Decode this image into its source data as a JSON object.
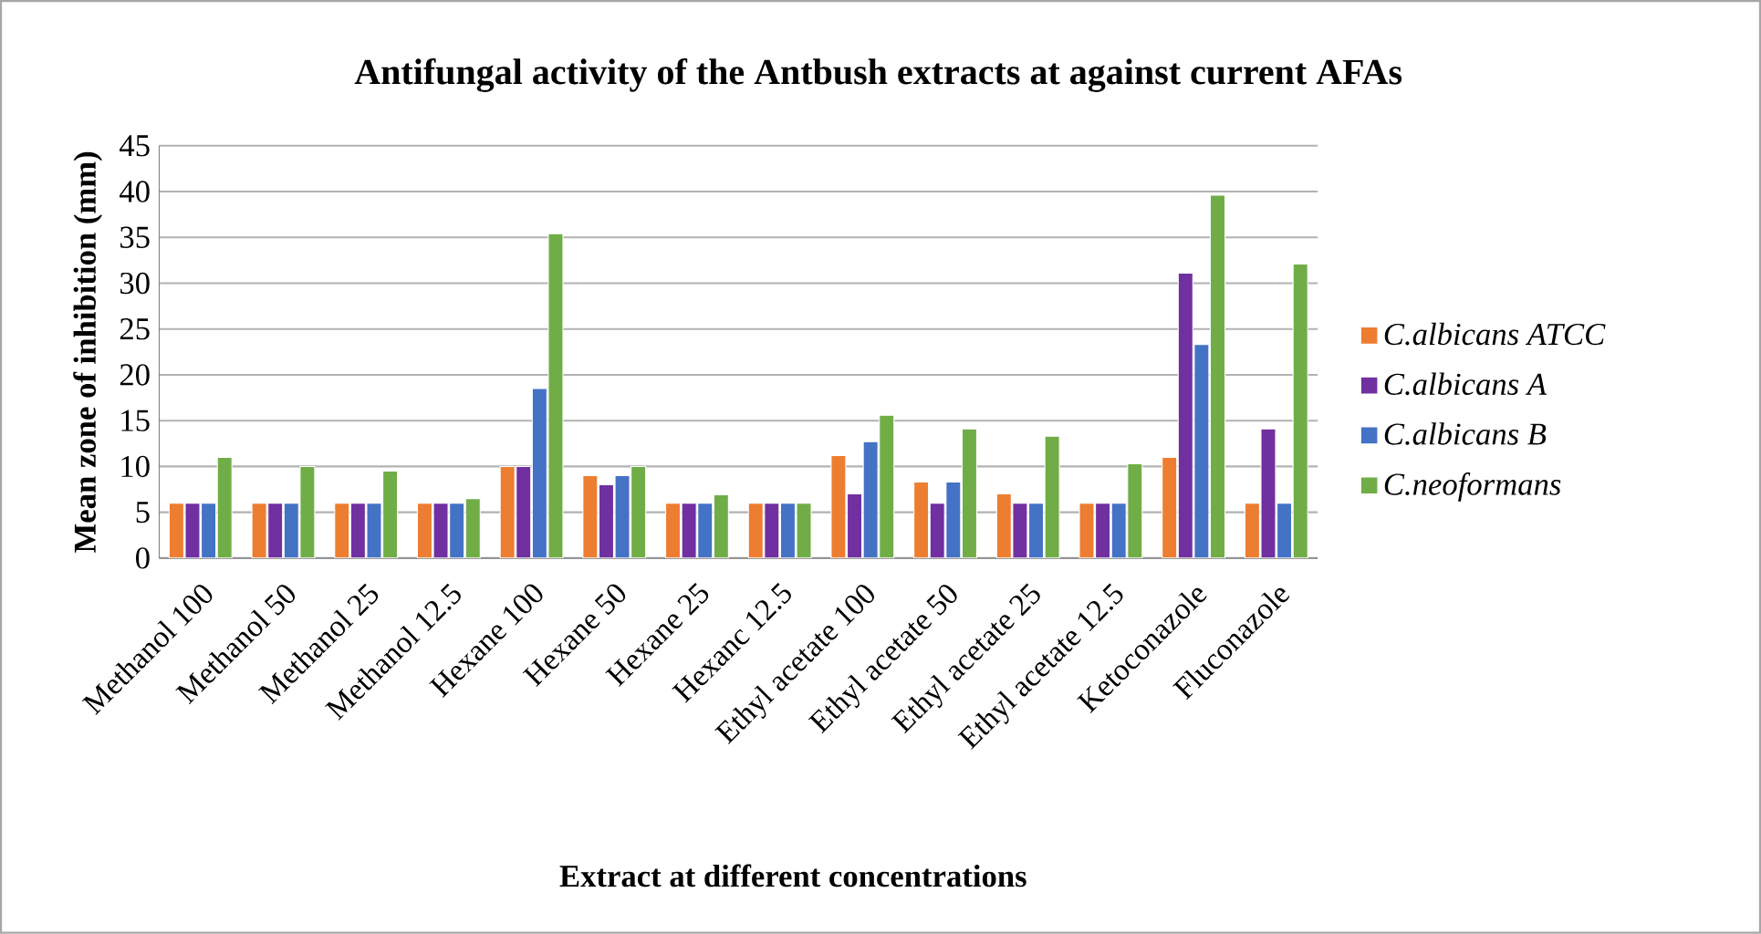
{
  "chart_data": {
    "type": "bar",
    "title": "Antifungal activity of the Antbush extracts at against current AFAs",
    "xlabel": "Extract at different concentrations",
    "ylabel": "Mean zone of inhibition (mm)",
    "categories": [
      "Methanol 100",
      "Methanol 50",
      "Methanol 25",
      "Methanol 12.5",
      "Hexane 100",
      "Hexane 50",
      "Hexane 25",
      "Hexanc 12.5",
      "Ethyl acetate 100",
      "Ethyl acetate 50",
      "Ethyl acetate 25",
      "Ethyl acetate 12.5",
      "Ketoconazole",
      "Fluconazole"
    ],
    "series": [
      {
        "name": "C.albicans ATCC",
        "color": "#ed7d31",
        "values": [
          6,
          6,
          6,
          6,
          10,
          9,
          6,
          6,
          11.2,
          8.3,
          7,
          6,
          11,
          6
        ]
      },
      {
        "name": "C.albicans A",
        "color": "#7030a0",
        "values": [
          6,
          6,
          6,
          6,
          10,
          8,
          6,
          6,
          7,
          6,
          6,
          6,
          31.1,
          14.1
        ]
      },
      {
        "name": "C.albicans B",
        "color": "#4472c4",
        "values": [
          6,
          6,
          6,
          6,
          18.5,
          9,
          6,
          6,
          12.7,
          8.3,
          6,
          6,
          23.3,
          6
        ]
      },
      {
        "name": "C.neoformans",
        "color": "#70ad47",
        "values": [
          11,
          10,
          9.5,
          6.5,
          35.4,
          10,
          6.9,
          6,
          15.6,
          14.1,
          13.3,
          10.3,
          39.6,
          32.1
        ]
      }
    ],
    "ylim": [
      0,
      45
    ],
    "yticks": [
      0,
      5,
      10,
      15,
      20,
      25,
      30,
      35,
      40,
      45
    ],
    "grid": "y",
    "legend": "right"
  }
}
